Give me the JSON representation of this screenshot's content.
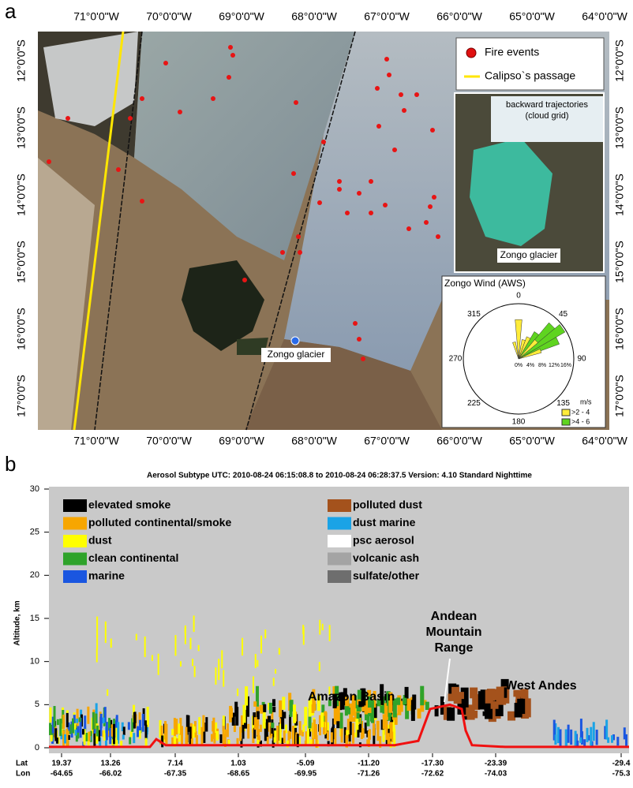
{
  "panel_a": {
    "label": "a",
    "lon_labels": [
      "71°0'0\"W",
      "70°0'0\"W",
      "69°0'0\"W",
      "68°0'0\"W",
      "67°0'0\"W",
      "66°0'0\"W",
      "65°0'0\"W",
      "64°0'0\"W"
    ],
    "lat_labels": [
      "12°0'0\"S",
      "13°0'0\"S",
      "14°0'0\"S",
      "15°0'0\"S",
      "16°0'0\"S",
      "17°0'0\"S"
    ],
    "legend": {
      "fire": "Fire events",
      "calipso": "Calipso`s passage"
    },
    "inset": {
      "title_1": "backward trajectories",
      "title_2": "(cloud grid)",
      "site": "Zongo glacier"
    },
    "map_site": "Zongo glacier",
    "wind_rose": {
      "title": "Zongo Wind (AWS)",
      "directions": [
        "0",
        "45",
        "90",
        "135",
        "180",
        "225",
        "270",
        "315"
      ],
      "scale": [
        "0%",
        "4%",
        "8%",
        "12%",
        "16%"
      ],
      "unit": "m/s",
      "classes": [
        ">2 - 4",
        ">4 - 6"
      ]
    }
  },
  "panel_b": {
    "label": "b",
    "title": "Aerosol Subtype   UTC:  2010-08-24  06:15:08.8  to  2010-08-24  06:28:37.5   Version: 4.10  Standard Nighttime",
    "y_label": "Altitude, km",
    "y_ticks": [
      "0",
      "5",
      "10",
      "15",
      "20",
      "25",
      "30"
    ],
    "legend": [
      "elevated smoke",
      "polluted continental/smoke",
      "dust",
      "clean continental",
      "marine",
      "polluted dust",
      "dust marine",
      "psc aerosol",
      "volcanic ash",
      "sulfate/other"
    ],
    "annotations": {
      "amazon": "Amazon Basin",
      "andean": [
        "Andean",
        "Mountain",
        "Range"
      ],
      "west": "West Andes"
    },
    "lat_heading": "Lat",
    "lon_heading": "Lon",
    "lat": [
      "19.37",
      "13.26",
      "7.14",
      "1.03",
      "-5.09",
      "-11.20",
      "-17.30",
      "-23.39",
      "-29.4"
    ],
    "lon": [
      "-64.65",
      "-66.02",
      "-67.35",
      "-68.65",
      "-69.95",
      "-71.26",
      "-72.62",
      "-74.03",
      "-75.3"
    ]
  }
}
